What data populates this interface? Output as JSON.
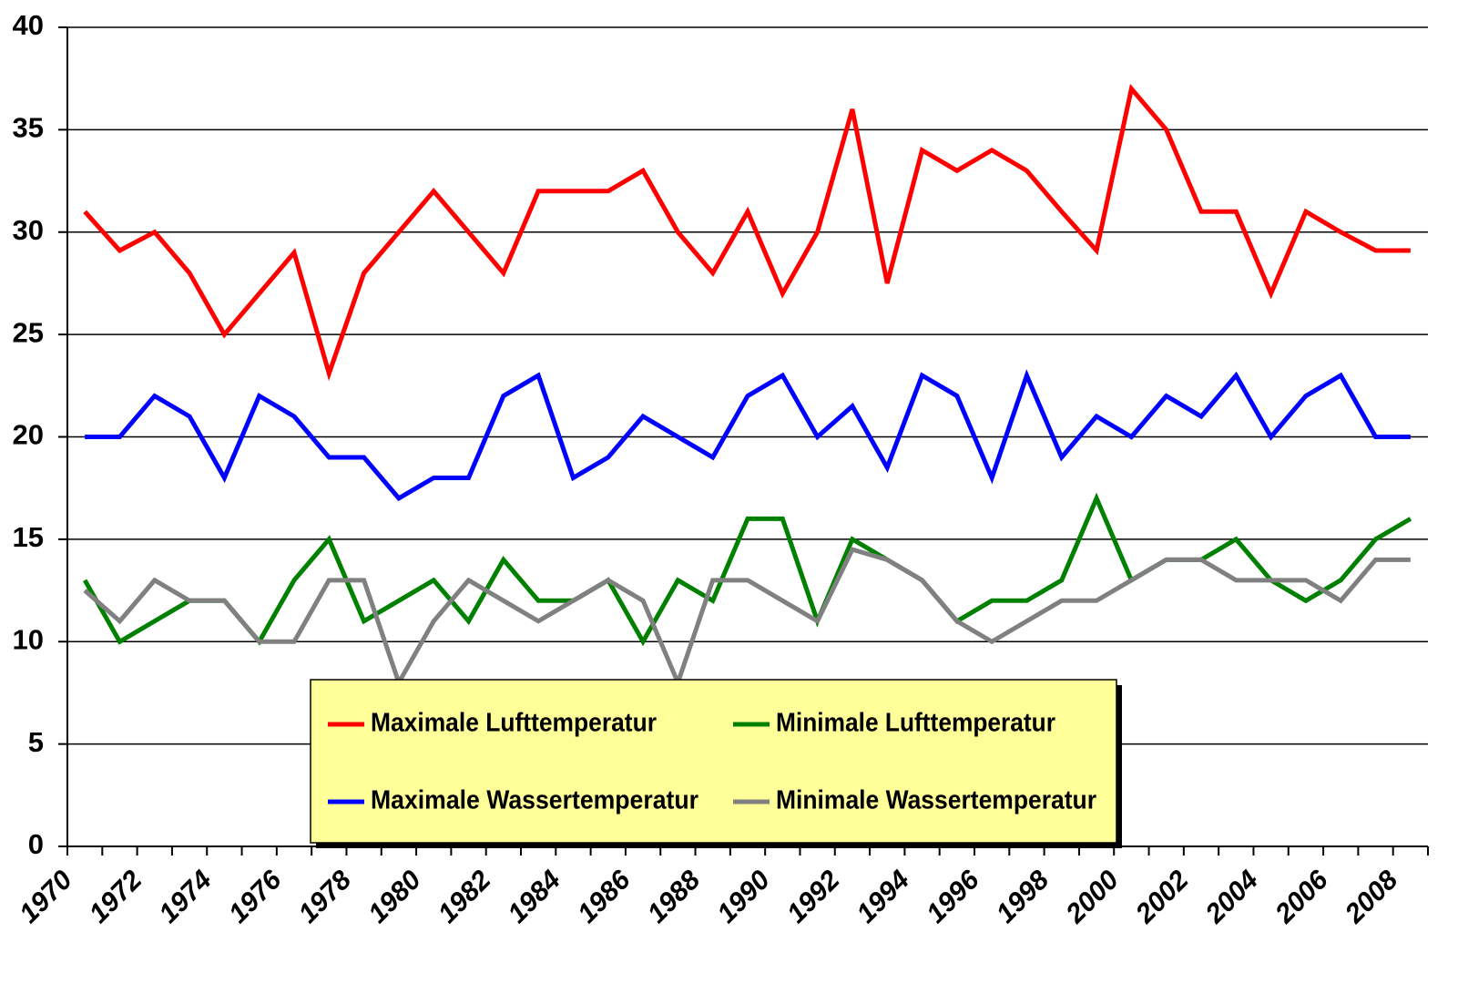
{
  "chart_data": {
    "type": "line",
    "categories": [
      "1970",
      null,
      "1972",
      null,
      "1974",
      null,
      "1976",
      null,
      "1978",
      null,
      "1980",
      null,
      "1982",
      null,
      "1984",
      null,
      "1986",
      null,
      "1988",
      null,
      "1990",
      null,
      "1992",
      null,
      "1994",
      null,
      "1996",
      null,
      "1998",
      null,
      "2000",
      null,
      "2002",
      null,
      "2004",
      null,
      "2006",
      null,
      "2008"
    ],
    "series": [
      {
        "name": "Maximale Lufttemperatur",
        "color": "#ff0000",
        "values": [
          31,
          29.1,
          30,
          28,
          25,
          27,
          29,
          23.1,
          28,
          30,
          32,
          30,
          28,
          32,
          32,
          32,
          33,
          30,
          28,
          31,
          27,
          30,
          36,
          27.5,
          34,
          33,
          34,
          33,
          31,
          29.1,
          37,
          35,
          31,
          31,
          27,
          31,
          30,
          29.1,
          29.1
        ]
      },
      {
        "name": "Minimale Lufttemperatur",
        "color": "#008000",
        "values": [
          13,
          10,
          11,
          12,
          12,
          10,
          13,
          15,
          11,
          12,
          13,
          11,
          14,
          12,
          12,
          13,
          10,
          13,
          12,
          16,
          16,
          11,
          15,
          14,
          13,
          11,
          12,
          12,
          13,
          17,
          13,
          14,
          14,
          15,
          13,
          12,
          13,
          15,
          16
        ]
      },
      {
        "name": "Maximale Wassertemperatur",
        "color": "#0000ff",
        "values": [
          20,
          20,
          22,
          21,
          18,
          22,
          21,
          19,
          19,
          17,
          18,
          18,
          22,
          23,
          18,
          19,
          21,
          20,
          19,
          22,
          23,
          20,
          21.5,
          18.5,
          23,
          22,
          18,
          23,
          19,
          21,
          20,
          22,
          21,
          23,
          20,
          22,
          23,
          20,
          20
        ]
      },
      {
        "name": "Minimale Wassertemperatur",
        "color": "#808080",
        "values": [
          12.5,
          11,
          13,
          12,
          12,
          10,
          10,
          13,
          13,
          8,
          11,
          13,
          12,
          11,
          12,
          13,
          12,
          8,
          13,
          13,
          12,
          11,
          14.5,
          14,
          13,
          11,
          10,
          11,
          12,
          12,
          13,
          14,
          14,
          13,
          13,
          13,
          12,
          14,
          14
        ]
      }
    ],
    "ylim": [
      0,
      40
    ],
    "yticks": [
      0,
      5,
      10,
      15,
      20,
      25,
      30,
      35,
      40
    ],
    "grid": true,
    "legend_background": "#ffff99"
  }
}
